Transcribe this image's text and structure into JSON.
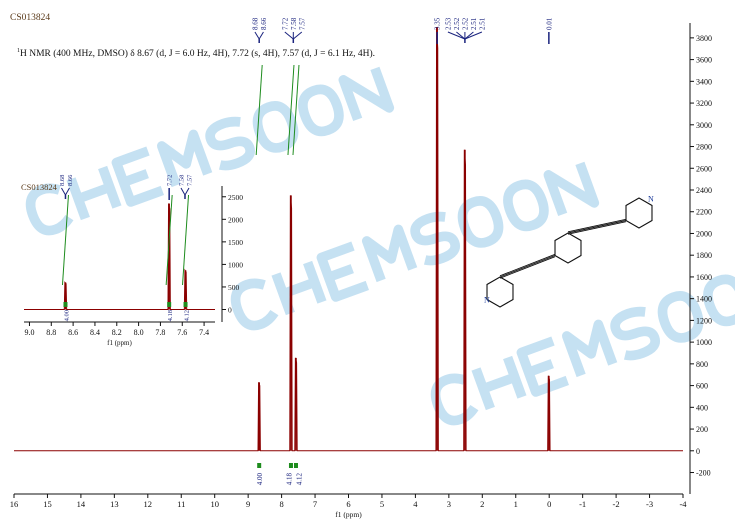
{
  "sample_id": "CS013824",
  "nmr_description": {
    "prefix_superscript": "1",
    "text": "H NMR (400 MHz, DMSO) δ 8.67 (d, J = 6.0 Hz, 4H), 7.72 (s, 4H), 7.57 (d, J = 6.1 Hz, 4H)."
  },
  "watermark": "CHEMSOON",
  "colors": {
    "spectrum": "#8b0000",
    "peak_label": "#1a237e",
    "integral": "#1e8c1e",
    "watermark": "#bcdcf0"
  },
  "chart_data": [
    {
      "type": "line",
      "name": "main-spectrum",
      "xlabel": "f1 (ppm)",
      "xlim": [
        16,
        -4
      ],
      "ylim": [
        -300,
        3900
      ],
      "x_ticks": [
        16,
        15,
        14,
        13,
        12,
        11,
        10,
        9,
        8,
        7,
        6,
        5,
        4,
        3,
        2,
        1,
        0,
        -1,
        -2,
        -3,
        -4
      ],
      "y_ticks": [
        -200,
        0,
        200,
        400,
        600,
        800,
        1000,
        1200,
        1400,
        1600,
        1800,
        2000,
        2200,
        2400,
        2600,
        2800,
        3000,
        3200,
        3400,
        3600,
        3800
      ],
      "peaks": [
        {
          "ppm": 8.67,
          "height": 630
        },
        {
          "ppm": 7.72,
          "height": 2350
        },
        {
          "ppm": 7.57,
          "height": 855
        },
        {
          "ppm": 3.35,
          "height": 3900
        },
        {
          "ppm": 2.52,
          "height": 2770
        },
        {
          "ppm": 0.01,
          "height": 690
        }
      ],
      "peak_label_groups": [
        {
          "labels": [
            "8.68",
            "8.66"
          ],
          "ppm": 8.67
        },
        {
          "labels": [
            "7.72",
            "7.58",
            "7.57"
          ],
          "ppm": 7.65
        },
        {
          "labels": [
            "3.35"
          ],
          "ppm": 3.35
        },
        {
          "labels": [
            "2.53",
            "2.52",
            "2.52",
            "2.51",
            "2.51"
          ],
          "ppm": 2.52
        },
        {
          "labels": [
            "0.01"
          ],
          "ppm": 0.01
        }
      ],
      "integrals": [
        {
          "ppm": 8.67,
          "value": "4.00"
        },
        {
          "ppm": 7.72,
          "value": "4.18"
        },
        {
          "ppm": 7.57,
          "value": "4.12"
        }
      ]
    },
    {
      "type": "line",
      "name": "inset-spectrum",
      "title": "CS013824",
      "xlabel": "f1 (ppm)",
      "xlim": [
        9.05,
        7.3
      ],
      "ylim": [
        -200,
        2650
      ],
      "x_ticks": [
        "9.0",
        "8.8",
        "8.6",
        "8.4",
        "8.2",
        "8.0",
        "7.8",
        "7.6",
        "7.4"
      ],
      "y_ticks": [
        0,
        500,
        1000,
        1500,
        2000,
        2500
      ],
      "peaks": [
        {
          "ppm": 8.67,
          "height": 600
        },
        {
          "ppm": 7.72,
          "height": 2350
        },
        {
          "ppm": 7.57,
          "height": 870
        }
      ],
      "peak_label_groups": [
        {
          "labels": [
            "8.68",
            "8.66"
          ],
          "ppm": 8.67
        },
        {
          "labels": [
            "7.72"
          ],
          "ppm": 7.72
        },
        {
          "labels": [
            "7.58",
            "7.57"
          ],
          "ppm": 7.575
        }
      ],
      "integrals": [
        {
          "ppm": 8.67,
          "value": "4.00"
        },
        {
          "ppm": 7.72,
          "value": "4.18"
        },
        {
          "ppm": 7.57,
          "value": "4.12"
        }
      ]
    }
  ],
  "structure": {
    "atom_labels": [
      "N",
      "N"
    ]
  }
}
